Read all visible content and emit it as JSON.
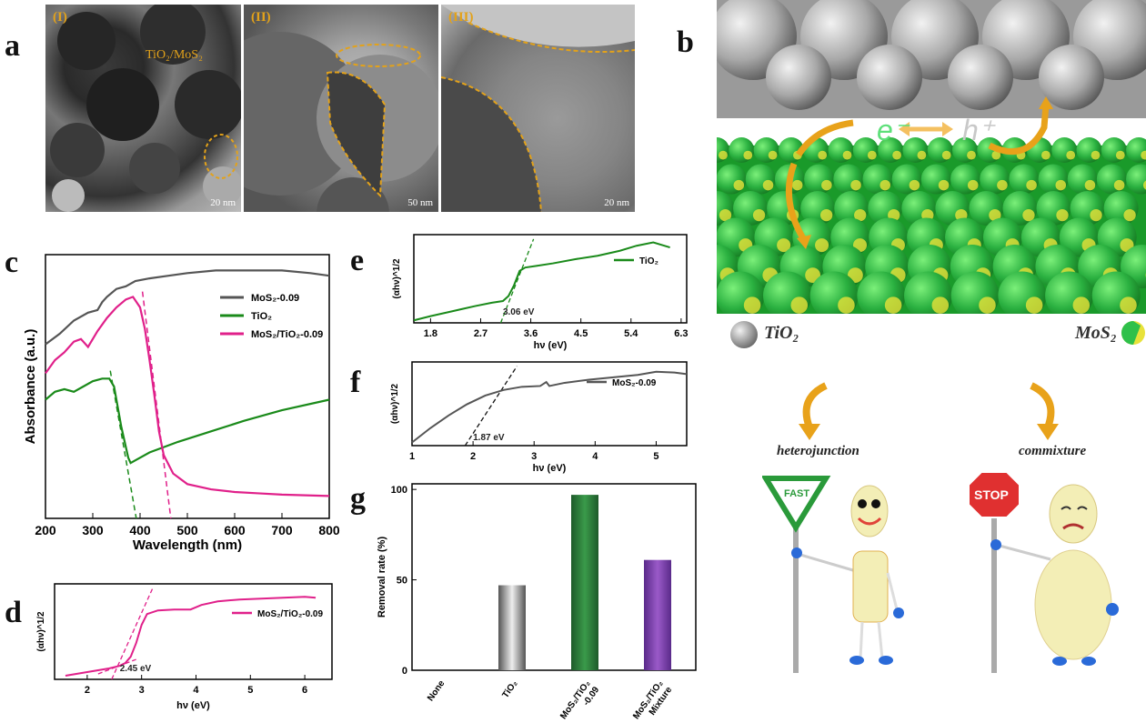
{
  "panel_labels": {
    "a": "a",
    "b": "b",
    "c": "c",
    "d": "d",
    "e": "e",
    "f": "f",
    "g": "g"
  },
  "tem": {
    "i": {
      "roman": "(I)",
      "scale": "20 nm",
      "tag": "TiO₂/MoS₂"
    },
    "ii": {
      "roman": "(II)",
      "scale": "50 nm"
    },
    "iii": {
      "roman": "(III)",
      "scale": "20 nm"
    }
  },
  "scheme": {
    "e_label": "e⁻",
    "h_label": "h⁺",
    "tio2_label": "TiO₂",
    "mos2_label": "MoS₂",
    "heterojunction": "heterojunction",
    "commixture": "commixture",
    "fast_sign": "FAST",
    "stop_sign": "STOP",
    "colors": {
      "tio2": "#b8b8b8",
      "mos2_green": "#2fc04a",
      "mos2_yellow": "#e8e23a",
      "arrow": "#e8a21a"
    }
  },
  "chart_data": [
    {
      "id": "c",
      "type": "line",
      "xlabel": "Wavelength (nm)",
      "ylabel": "Absorbance (a.u.)",
      "xlim": [
        200,
        800
      ],
      "xticks": [
        200,
        300,
        400,
        500,
        600,
        700,
        800
      ],
      "legend": "top-right",
      "series": [
        {
          "name": "MoS₂-0.09",
          "color": "#555555",
          "x": [
            200,
            230,
            260,
            290,
            310,
            320,
            330,
            350,
            370,
            380,
            390,
            420,
            460,
            500,
            560,
            620,
            700,
            760,
            800
          ],
          "y": [
            0.66,
            0.7,
            0.75,
            0.78,
            0.79,
            0.82,
            0.84,
            0.87,
            0.88,
            0.89,
            0.9,
            0.91,
            0.92,
            0.93,
            0.94,
            0.94,
            0.94,
            0.93,
            0.92
          ]
        },
        {
          "name": "TiO₂",
          "color": "#1a8a1a",
          "x": [
            200,
            220,
            240,
            260,
            280,
            300,
            320,
            335,
            345,
            360,
            375,
            380,
            390,
            420,
            480,
            550,
            620,
            700,
            800
          ],
          "y": [
            0.45,
            0.48,
            0.49,
            0.48,
            0.5,
            0.52,
            0.53,
            0.53,
            0.5,
            0.35,
            0.23,
            0.21,
            0.22,
            0.25,
            0.29,
            0.33,
            0.37,
            0.41,
            0.45
          ]
        },
        {
          "name": "MoS₂/TiO₂-0.09",
          "color": "#e0208a",
          "x": [
            200,
            220,
            240,
            260,
            275,
            290,
            310,
            330,
            350,
            370,
            385,
            400,
            410,
            420,
            430,
            440,
            450,
            470,
            500,
            550,
            600,
            650,
            700,
            800
          ],
          "y": [
            0.55,
            0.6,
            0.63,
            0.67,
            0.68,
            0.65,
            0.71,
            0.76,
            0.8,
            0.83,
            0.84,
            0.8,
            0.72,
            0.6,
            0.47,
            0.33,
            0.24,
            0.17,
            0.13,
            0.11,
            0.1,
            0.095,
            0.09,
            0.085
          ]
        }
      ],
      "tangents": [
        {
          "color": "#1a8a1a",
          "x": [
            337,
            392
          ],
          "y": [
            0.56,
            0.0
          ]
        },
        {
          "color": "#e0208a",
          "x": [
            405,
            465
          ],
          "y": [
            0.86,
            0.0
          ]
        }
      ]
    },
    {
      "id": "d",
      "type": "line",
      "xlabel": "hν (eV)",
      "ylabel": "(αhν)^1/2",
      "xlim": [
        1.4,
        6.5
      ],
      "xticks": [
        2,
        3,
        4,
        5,
        6
      ],
      "legend": "top-right",
      "series": [
        {
          "name": "MoS₂/TiO₂-0.09",
          "color": "#e0208a",
          "x": [
            1.6,
            1.9,
            2.2,
            2.4,
            2.6,
            2.7,
            2.8,
            2.9,
            3.0,
            3.1,
            3.3,
            3.6,
            3.9,
            4.1,
            4.4,
            4.8,
            5.2,
            5.6,
            6.0,
            6.2
          ],
          "y": [
            0.04,
            0.07,
            0.1,
            0.12,
            0.15,
            0.18,
            0.25,
            0.4,
            0.6,
            0.72,
            0.76,
            0.77,
            0.77,
            0.82,
            0.86,
            0.88,
            0.89,
            0.9,
            0.91,
            0.9
          ]
        }
      ],
      "tangents": [
        {
          "color": "#e0208a",
          "x": [
            2.45,
            3.2
          ],
          "y": [
            0.0,
            1.0
          ]
        },
        {
          "color": "#e0208a",
          "x": [
            2.2,
            2.9
          ],
          "y": [
            0.06,
            0.22
          ]
        }
      ],
      "annotation": "2.45 eV"
    },
    {
      "id": "e",
      "type": "line",
      "xlabel": "hν (eV)",
      "ylabel": "(αhν)^1/2",
      "xlim": [
        1.5,
        6.4
      ],
      "xticks": [
        1.8,
        2.7,
        3.6,
        4.5,
        5.4,
        6.3
      ],
      "legend": "top-right",
      "series": [
        {
          "name": "TiO₂",
          "color": "#1a8a1a",
          "x": [
            1.5,
            1.8,
            2.2,
            2.6,
            2.9,
            3.1,
            3.2,
            3.3,
            3.4,
            3.5,
            3.7,
            4.0,
            4.4,
            4.8,
            5.2,
            5.5,
            5.8,
            6.1
          ],
          "y": [
            0.03,
            0.08,
            0.14,
            0.2,
            0.24,
            0.26,
            0.32,
            0.45,
            0.62,
            0.66,
            0.68,
            0.71,
            0.76,
            0.8,
            0.86,
            0.92,
            0.96,
            0.9
          ]
        }
      ],
      "tangents": [
        {
          "color": "#1a8a1a",
          "x": [
            3.06,
            3.65
          ],
          "y": [
            0.0,
            1.0
          ]
        }
      ],
      "annotation": "3.06 eV"
    },
    {
      "id": "f",
      "type": "line",
      "xlabel": "hν (eV)",
      "ylabel": "(αhν)^1/2",
      "xlim": [
        1,
        5.5
      ],
      "xticks": [
        1,
        2,
        3,
        4,
        5
      ],
      "legend": "top-right",
      "series": [
        {
          "name": "MoS₂-0.09",
          "color": "#555555",
          "x": [
            1.0,
            1.3,
            1.6,
            1.9,
            2.2,
            2.5,
            2.8,
            3.1,
            3.2,
            3.25,
            3.5,
            3.9,
            4.3,
            4.7,
            5.0,
            5.3,
            5.5
          ],
          "y": [
            0.04,
            0.22,
            0.38,
            0.52,
            0.63,
            0.7,
            0.74,
            0.75,
            0.8,
            0.75,
            0.79,
            0.83,
            0.86,
            0.89,
            0.93,
            0.92,
            0.9
          ]
        }
      ],
      "tangents": [
        {
          "color": "#111111",
          "x": [
            1.87,
            2.72
          ],
          "y": [
            0.0,
            1.0
          ]
        }
      ],
      "annotation": "1.87 eV"
    },
    {
      "id": "g",
      "type": "bar",
      "ylabel": "Removal rate (%)",
      "ylim": [
        0,
        100
      ],
      "yticks": [
        0,
        50,
        100
      ],
      "categories": [
        "None",
        "TiO₂",
        "MoS₂/TiO₂ -0.09",
        "MoS₂/TiO₂ Mixture"
      ],
      "values": [
        0,
        47,
        97,
        61
      ],
      "colors": [
        "#999999",
        "#9a9a9a",
        "#2f7a3a",
        "#7a3aa0"
      ]
    }
  ]
}
